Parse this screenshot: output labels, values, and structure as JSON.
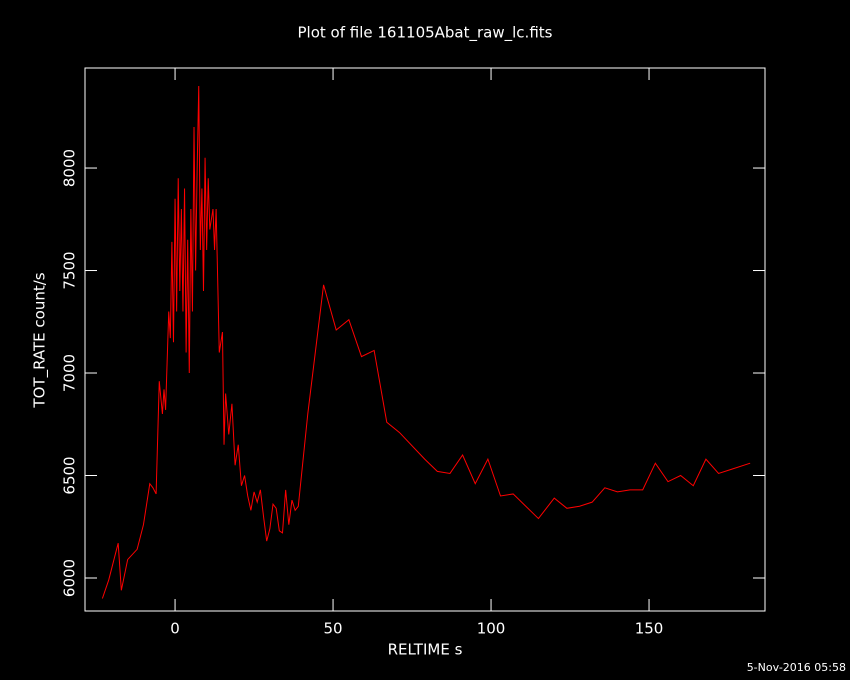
{
  "chart_data": {
    "type": "line",
    "title": "Plot of file 161105Abat_raw_lc.fits",
    "xlabel": "RELTIME  s",
    "ylabel": "TOT_RATE  count/s",
    "timestamp": "5-Nov-2016 05:58",
    "color": "#ff0000",
    "x": [
      -23,
      -21,
      -18,
      -17,
      -15,
      -12,
      -10,
      -8,
      -7,
      -6,
      -5,
      -4,
      -3.5,
      -3,
      -2,
      -1.5,
      -1,
      -0.5,
      0,
      0.5,
      1,
      1.5,
      2,
      2.5,
      3,
      3.5,
      4,
      4.5,
      5,
      5.5,
      6,
      6.5,
      7,
      7.5,
      8,
      8.5,
      9,
      9.5,
      10,
      10.5,
      11,
      12,
      12.5,
      13,
      14,
      15,
      15.5,
      16,
      17,
      18,
      19,
      20,
      21,
      22,
      23,
      24,
      25,
      26,
      27,
      28,
      29,
      30,
      31,
      32,
      33,
      34,
      35,
      36,
      37,
      38,
      39,
      42,
      47,
      51,
      55,
      59,
      63,
      67,
      71,
      79,
      83,
      87,
      91,
      95,
      99,
      103,
      107,
      115,
      120,
      124,
      128,
      132,
      136,
      140,
      144,
      148,
      152,
      156,
      160,
      164,
      168,
      172,
      176,
      182
    ],
    "values": [
      5900,
      5990,
      6170,
      5940,
      6090,
      6140,
      6260,
      6460,
      6440,
      6410,
      6960,
      6800,
      6920,
      6820,
      7300,
      7170,
      7640,
      7150,
      7850,
      7300,
      7950,
      7400,
      7800,
      7300,
      7900,
      7100,
      7650,
      7000,
      7800,
      7300,
      8200,
      7500,
      8000,
      8400,
      7600,
      7900,
      7400,
      8050,
      7600,
      7950,
      7700,
      7800,
      7600,
      7800,
      7100,
      7200,
      6650,
      6900,
      6700,
      6850,
      6550,
      6650,
      6450,
      6500,
      6400,
      6330,
      6420,
      6370,
      6430,
      6300,
      6180,
      6240,
      6360,
      6340,
      6230,
      6220,
      6430,
      6260,
      6380,
      6330,
      6350,
      6800,
      7430,
      7210,
      7260,
      7080,
      7110,
      6760,
      6710,
      6580,
      6520,
      6510,
      6600,
      6460,
      6580,
      6400,
      6410,
      6290,
      6390,
      6340,
      6350,
      6370,
      6440,
      6420,
      6430,
      6430,
      6560,
      6470,
      6500,
      6450,
      6580,
      6510,
      6530,
      6560
    ],
    "xlim": [
      -28.5,
      186.7
    ],
    "ylim": [
      5839,
      8488
    ],
    "xticks": [
      0,
      50,
      100,
      150
    ],
    "yticks": [
      6000,
      6500,
      7000,
      7500,
      8000
    ]
  }
}
